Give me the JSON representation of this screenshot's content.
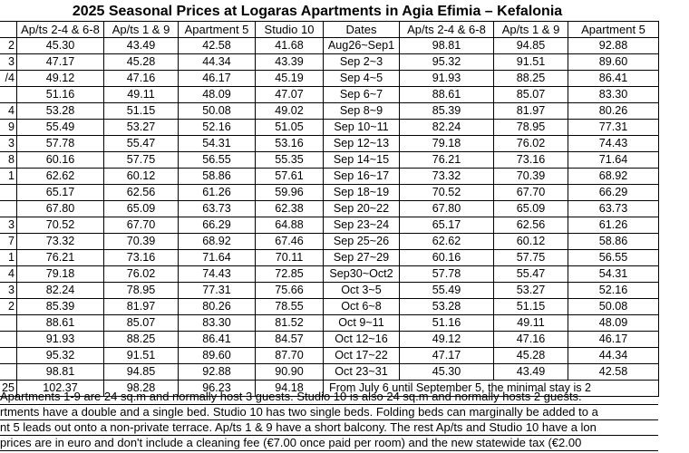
{
  "title": "2025 Seasonal Prices at Logaras Apartments in Agia Efimia – Kefalonia",
  "headers": {
    "left_dates": "",
    "c1": "Ap/ts 2-4 & 6-8",
    "c2": "Ap/ts 1 & 9",
    "c3": "Apartment 5",
    "c4": "Studio 10",
    "dates": "Dates",
    "c5": "Ap/ts 2-4 & 6-8",
    "c6": "Ap/ts 1 & 9",
    "c7": "Apartment 5"
  },
  "rows": [
    {
      "ld": "2",
      "a": "45.30",
      "b": "43.49",
      "c": "42.58",
      "d": "41.68",
      "dates": "Aug26~Sep1",
      "e": "98.81",
      "f": "94.85",
      "g": "92.88"
    },
    {
      "ld": "3",
      "a": "47.17",
      "b": "45.28",
      "c": "44.34",
      "d": "43.39",
      "dates": "Sep 2~3",
      "e": "95.32",
      "f": "91.51",
      "g": "89.60"
    },
    {
      "ld": "/4",
      "a": "49.12",
      "b": "47.16",
      "c": "46.17",
      "d": "45.19",
      "dates": "Sep 4~5",
      "e": "91.93",
      "f": "88.25",
      "g": "86.41"
    },
    {
      "ld": "",
      "a": "51.16",
      "b": "49.11",
      "c": "48.09",
      "d": "47.07",
      "dates": "Sep 6~7",
      "e": "88.61",
      "f": "85.07",
      "g": "83.30"
    },
    {
      "ld": "4",
      "a": "53.28",
      "b": "51.15",
      "c": "50.08",
      "d": "49.02",
      "dates": "Sep 8~9",
      "e": "85.39",
      "f": "81.97",
      "g": "80.26"
    },
    {
      "ld": "9",
      "a": "55.49",
      "b": "53.27",
      "c": "52.16",
      "d": "51.05",
      "dates": "Sep 10~11",
      "e": "82.24",
      "f": "78.95",
      "g": "77.31"
    },
    {
      "ld": "3",
      "a": "57.78",
      "b": "55.47",
      "c": "54.31",
      "d": "53.16",
      "dates": "Sep 12~13",
      "e": "79.18",
      "f": "76.02",
      "g": "74.43"
    },
    {
      "ld": "8",
      "a": "60.16",
      "b": "57.75",
      "c": "56.55",
      "d": "55.35",
      "dates": "Sep 14~15",
      "e": "76.21",
      "f": "73.16",
      "g": "71.64"
    },
    {
      "ld": "1",
      "a": "62.62",
      "b": "60.12",
      "c": "58.86",
      "d": "57.61",
      "dates": "Sep 16~17",
      "e": "73.32",
      "f": "70.39",
      "g": "68.92"
    },
    {
      "ld": "",
      "a": "65.17",
      "b": "62.56",
      "c": "61.26",
      "d": "59.96",
      "dates": "Sep 18~19",
      "e": "70.52",
      "f": "67.70",
      "g": "66.29"
    },
    {
      "ld": "",
      "a": "67.80",
      "b": "65.09",
      "c": "63.73",
      "d": "62.38",
      "dates": "Sep 20~22",
      "e": "67.80",
      "f": "65.09",
      "g": "63.73"
    },
    {
      "ld": "3",
      "a": "70.52",
      "b": "67.70",
      "c": "66.29",
      "d": "64.88",
      "dates": "Sep 23~24",
      "e": "65.17",
      "f": "62.56",
      "g": "61.26"
    },
    {
      "ld": "7",
      "a": "73.32",
      "b": "70.39",
      "c": "68.92",
      "d": "67.46",
      "dates": "Sep 25~26",
      "e": "62.62",
      "f": "60.12",
      "g": "58.86"
    },
    {
      "ld": "1",
      "a": "76.21",
      "b": "73.16",
      "c": "71.64",
      "d": "70.11",
      "dates": "Sep 27~29",
      "e": "60.16",
      "f": "57.75",
      "g": "56.55"
    },
    {
      "ld": "4",
      "a": "79.18",
      "b": "76.02",
      "c": "74.43",
      "d": "72.85",
      "dates": "Sep30~Oct2",
      "e": "57.78",
      "f": "55.47",
      "g": "54.31"
    },
    {
      "ld": "3",
      "a": "82.24",
      "b": "78.95",
      "c": "77.31",
      "d": "75.66",
      "dates": "Oct 3~5",
      "e": "55.49",
      "f": "53.27",
      "g": "52.16"
    },
    {
      "ld": "2",
      "a": "85.39",
      "b": "81.97",
      "c": "80.26",
      "d": "78.55",
      "dates": "Oct 6~8",
      "e": "53.28",
      "f": "51.15",
      "g": "50.08"
    },
    {
      "ld": "",
      "a": "88.61",
      "b": "85.07",
      "c": "83.30",
      "d": "81.52",
      "dates": "Oct 9~11",
      "e": "51.16",
      "f": "49.11",
      "g": "48.09"
    },
    {
      "ld": "",
      "a": "91.93",
      "b": "88.25",
      "c": "86.41",
      "d": "84.57",
      "dates": "Oct 12~16",
      "e": "49.12",
      "f": "47.16",
      "g": "46.17"
    },
    {
      "ld": "",
      "a": "95.32",
      "b": "91.51",
      "c": "89.60",
      "d": "87.70",
      "dates": "Oct 17~22",
      "e": "47.17",
      "f": "45.28",
      "g": "44.34"
    },
    {
      "ld": "",
      "a": "98.81",
      "b": "94.85",
      "c": "92.88",
      "d": "90.90",
      "dates": "Oct 23~31",
      "e": "45.30",
      "f": "43.49",
      "g": "42.58"
    }
  ],
  "last_row": {
    "ld": "25",
    "a": "102.37",
    "b": "98.28",
    "c": "96.23",
    "d": "94.18",
    "minstay": "From July 6 until September 5, the minimal stay is 2"
  },
  "notes": [
    "Apartments 1-9 are 24 sq.m and normally host 3 guests. Studio 10 is also 24 sq.m and normally hosts 2 guests.",
    "rtments have a double and a single bed. Studio 10 has two single beds. Folding beds can marginally be added to a",
    "nt 5 leads out onto a non-private terrace. Ap/ts 1 & 9 have a short balcony. The rest Ap/ts and Studio 10 have a lon",
    "prices are in euro and don't include a cleaning fee (€7.00 once paid per room) and the new statewide tax (€2.00"
  ]
}
